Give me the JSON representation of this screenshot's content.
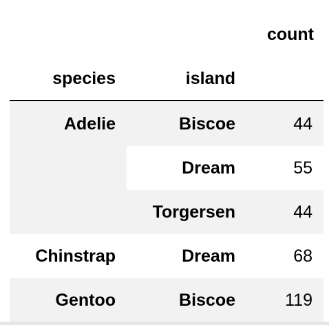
{
  "table": {
    "value_header": "count",
    "index_headers": [
      "species",
      "island"
    ],
    "rows": [
      {
        "species": "Adelie",
        "island": "Biscoe",
        "count": "44"
      },
      {
        "species": "",
        "island": "Dream",
        "count": "55"
      },
      {
        "species": "",
        "island": "Torgersen",
        "count": "44"
      },
      {
        "species": "Chinstrap",
        "island": "Dream",
        "count": "68"
      },
      {
        "species": "Gentoo",
        "island": "Biscoe",
        "count": "119"
      }
    ]
  },
  "colors": {
    "stripe": "#f2f2f2",
    "rule": "#000000",
    "text": "#000000"
  }
}
